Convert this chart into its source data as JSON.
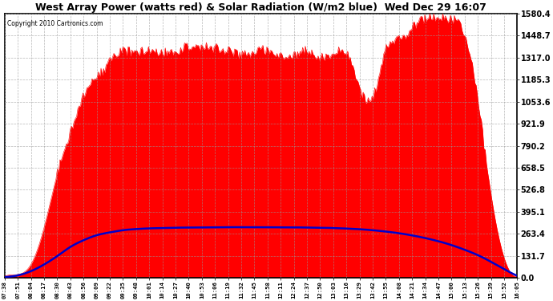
{
  "title": "West Array Power (watts red) & Solar Radiation (W/m2 blue)  Wed Dec 29 16:07",
  "copyright": "Copyright 2010 Cartronics.com",
  "y_max": 1580.4,
  "y_ticks": [
    0.0,
    131.7,
    263.4,
    395.1,
    526.8,
    658.5,
    790.2,
    921.9,
    1053.6,
    1185.3,
    1317.0,
    1448.7,
    1580.4
  ],
  "background_color": "#ffffff",
  "grid_color": "#999999",
  "red_color": "#ff0000",
  "blue_color": "#0000cc",
  "x_labels": [
    "07:38",
    "07:51",
    "08:04",
    "08:17",
    "08:30",
    "08:43",
    "08:56",
    "09:09",
    "09:22",
    "09:35",
    "09:48",
    "10:01",
    "10:14",
    "10:27",
    "10:40",
    "10:53",
    "11:06",
    "11:19",
    "11:32",
    "11:45",
    "11:58",
    "12:11",
    "12:24",
    "12:37",
    "12:50",
    "13:03",
    "13:16",
    "13:29",
    "13:42",
    "13:55",
    "14:08",
    "14:21",
    "14:34",
    "14:47",
    "15:00",
    "15:13",
    "15:26",
    "15:39",
    "15:52",
    "16:05"
  ],
  "power_values": [
    10,
    20,
    80,
    300,
    620,
    900,
    1080,
    1200,
    1280,
    1330,
    1350,
    1360,
    1370,
    1375,
    1380,
    1370,
    1360,
    1360,
    1355,
    1350,
    1345,
    1340,
    1335,
    1340,
    1345,
    1340,
    1330,
    1150,
    1080,
    1350,
    1440,
    1490,
    1540,
    1555,
    1550,
    1460,
    1060,
    500,
    120,
    10
  ],
  "radiation_values": [
    5,
    15,
    40,
    80,
    130,
    185,
    225,
    255,
    272,
    285,
    292,
    296,
    298,
    300,
    301,
    302,
    302,
    303,
    303,
    303,
    303,
    302,
    302,
    301,
    300,
    298,
    295,
    291,
    285,
    277,
    267,
    254,
    238,
    219,
    196,
    168,
    136,
    96,
    52,
    12
  ]
}
